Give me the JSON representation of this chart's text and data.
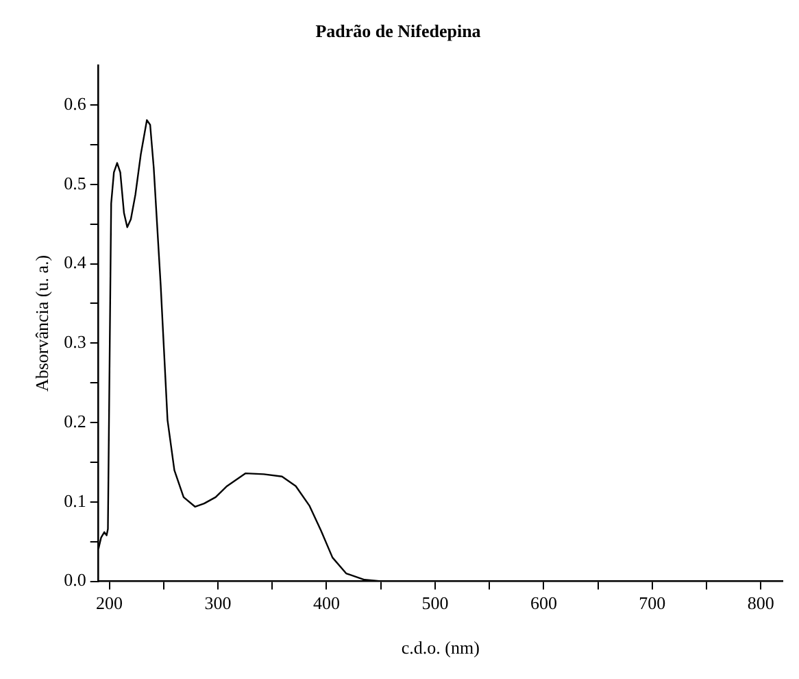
{
  "chart_data": {
    "type": "line",
    "title": "Padrão de Nifedepina",
    "xlabel": "c.d.o. (nm)",
    "ylabel": "Absorvância (u. a.)",
    "xlim": [
      190,
      820
    ],
    "ylim": [
      0,
      0.65
    ],
    "xticks": [
      200,
      {
        "value": 250,
        "label": null
      },
      300,
      {
        "value": 350,
        "label": null
      },
      400,
      {
        "value": 450,
        "label": null
      },
      500,
      {
        "value": 550,
        "label": null
      },
      600,
      {
        "value": 650,
        "label": null
      },
      700,
      {
        "value": 750,
        "label": null
      },
      800
    ],
    "yticks": [
      {
        "value": 0,
        "label": "0.0"
      },
      {
        "value": 0.05,
        "label": null
      },
      {
        "value": 0.1,
        "label": "0.1"
      },
      {
        "value": 0.15,
        "label": null
      },
      {
        "value": 0.2,
        "label": "0.2"
      },
      {
        "value": 0.25,
        "label": null
      },
      {
        "value": 0.3,
        "label": "0.3"
      },
      {
        "value": 0.35,
        "label": null
      },
      {
        "value": 0.4,
        "label": "0.4"
      },
      {
        "value": 0.45,
        "label": null
      },
      {
        "value": 0.5,
        "label": "0.5"
      },
      {
        "value": 0.55,
        "label": null
      },
      {
        "value": 0.6,
        "label": "0.6"
      }
    ],
    "grid": false,
    "legend": false,
    "marker": "none",
    "line_style": "solid",
    "series": [
      {
        "color": "#000000",
        "x": [
          190,
          192.4,
          195.4,
          197.5,
          198.7,
          201.7,
          204.2,
          207.2,
          210.1,
          213.5,
          216.5,
          219.8,
          224,
          229,
          234.6,
          237.6,
          240.9,
          247.3,
          253.6,
          259.9,
          268.4,
          278.9,
          287.3,
          297.9,
          308.4,
          325.3,
          342.2,
          359,
          371.7,
          384.4,
          394.9,
          405.5,
          418.1,
          435,
          451.9,
          820
        ],
        "values": [
          0.041,
          0.055,
          0.062,
          0.058,
          0.066,
          0.476,
          0.515,
          0.527,
          0.515,
          0.464,
          0.446,
          0.456,
          0.487,
          0.538,
          0.581,
          0.575,
          0.521,
          0.373,
          0.203,
          0.14,
          0.106,
          0.094,
          0.098,
          0.106,
          0.12,
          0.136,
          0.135,
          0.132,
          0.12,
          0.095,
          0.064,
          0.03,
          0.01,
          0.002,
          0,
          0
        ]
      }
    ]
  }
}
